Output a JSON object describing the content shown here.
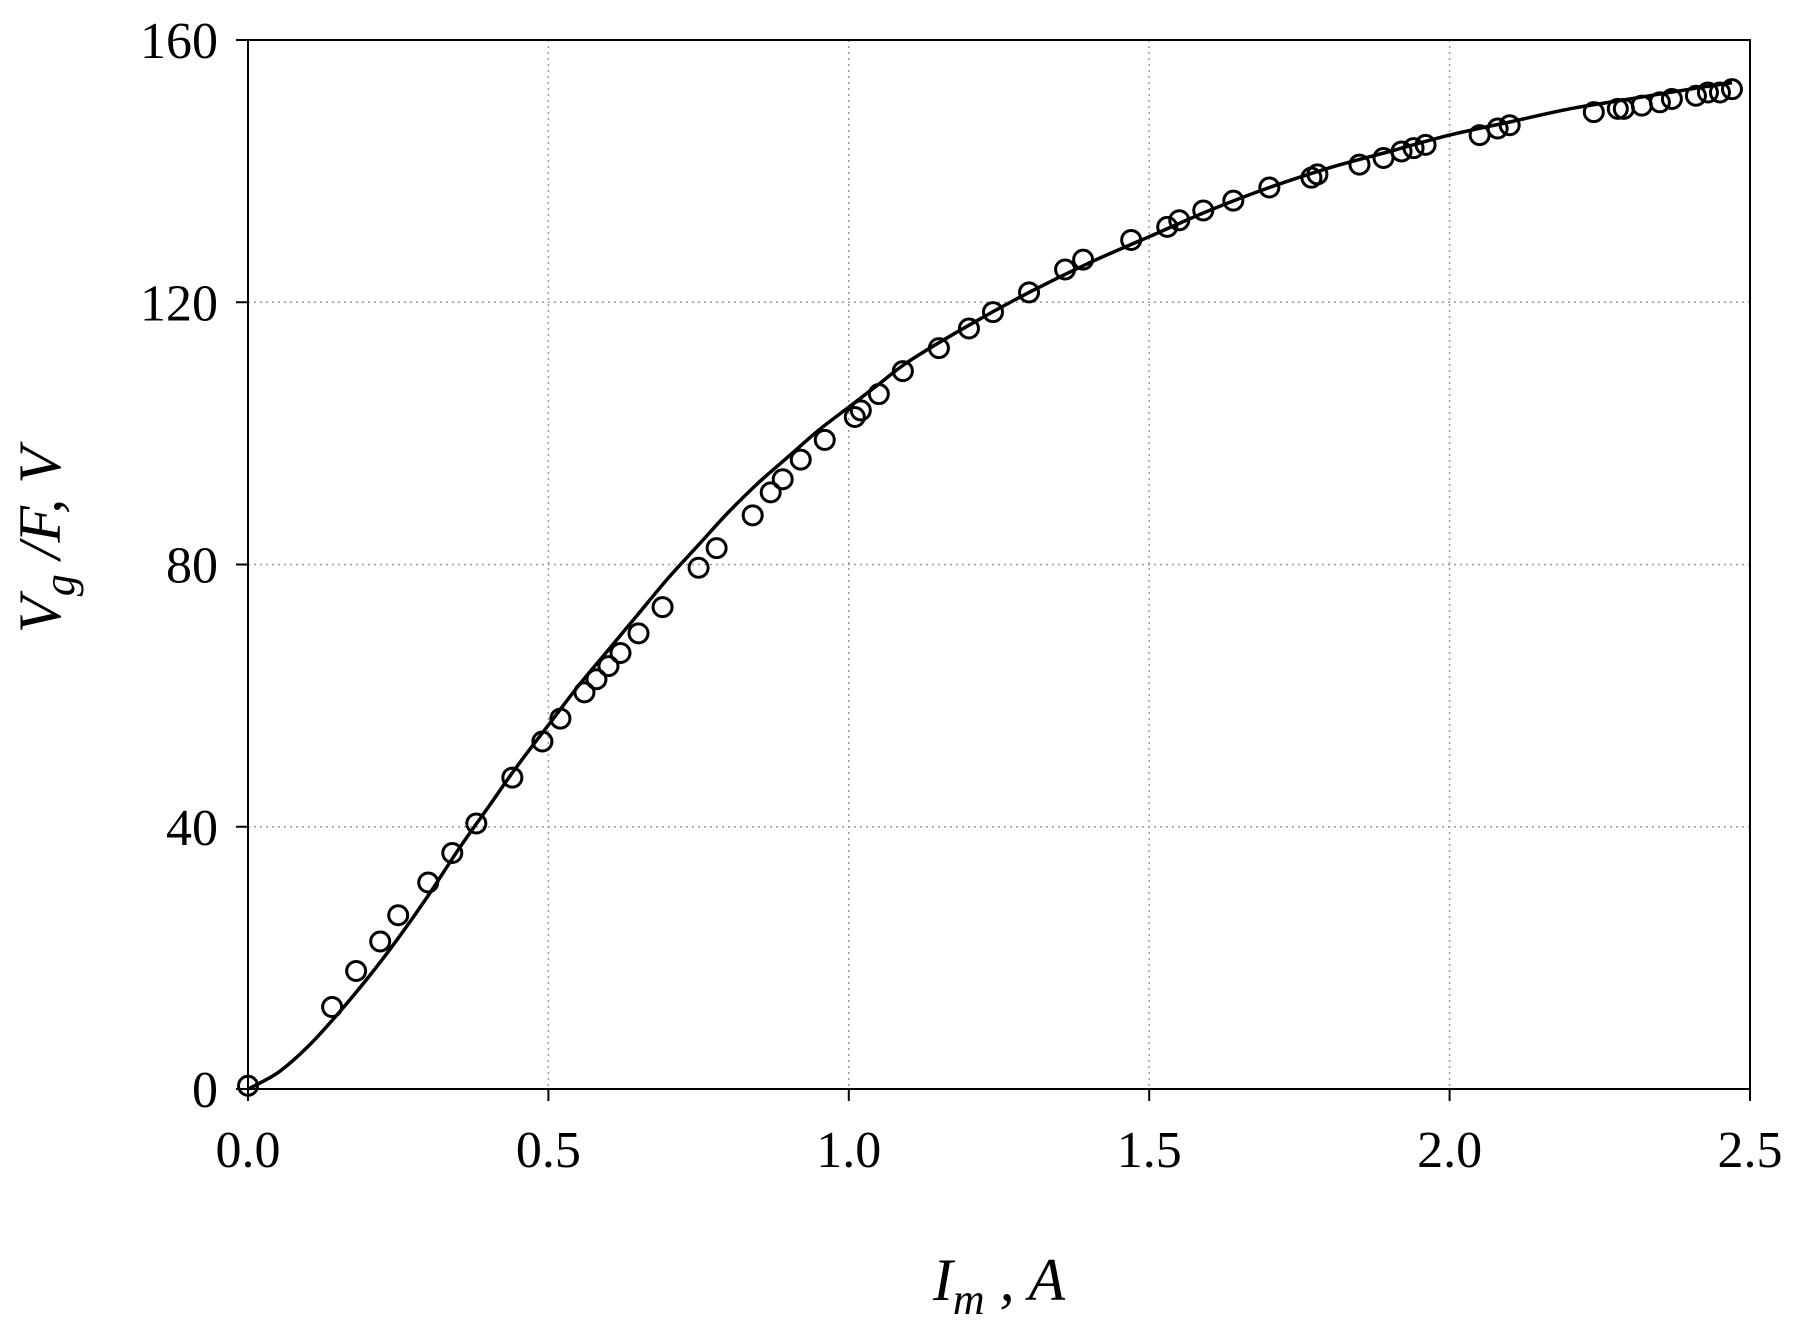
{
  "chart_data": {
    "type": "scatter",
    "title": "",
    "xlim": [
      0,
      2.5
    ],
    "ylim": [
      0,
      160
    ],
    "x_ticks": [
      "0.0",
      "0.5",
      "1.0",
      "1.5",
      "2.0",
      "2.5"
    ],
    "y_ticks": [
      "0",
      "40",
      "80",
      "120",
      "160"
    ],
    "xlabel": {
      "main": "I",
      "sub": "m",
      "rest": " , A"
    },
    "ylabel": {
      "main": "V",
      "sub": "g",
      "rest": " /F, V"
    },
    "grid": true,
    "legend": "none",
    "series": [
      {
        "kind": "markers",
        "x": [
          0.0,
          0.14,
          0.18,
          0.22,
          0.25,
          0.3,
          0.34,
          0.38,
          0.44,
          0.49,
          0.52,
          0.56,
          0.58,
          0.6,
          0.62,
          0.65,
          0.69,
          0.75,
          0.78,
          0.84,
          0.87,
          0.89,
          0.92,
          0.96,
          1.01,
          1.02,
          1.05,
          1.09,
          1.15,
          1.2,
          1.24,
          1.3,
          1.36,
          1.39,
          1.47,
          1.53,
          1.55,
          1.59,
          1.64,
          1.7,
          1.77,
          1.78,
          1.85,
          1.89,
          1.92,
          1.94,
          1.96,
          2.05,
          2.08,
          2.1,
          2.24,
          2.28,
          2.29,
          2.32,
          2.35,
          2.37,
          2.41,
          2.43,
          2.45,
          2.47
        ],
        "y": [
          0.5,
          12.5,
          18,
          22.5,
          26.5,
          31.5,
          36,
          40.5,
          47.5,
          53,
          56.5,
          60.5,
          62.5,
          64.5,
          66.5,
          69.5,
          73.5,
          79.5,
          82.5,
          87.5,
          91,
          93,
          96,
          99,
          102.5,
          103.5,
          106,
          109.5,
          113,
          116,
          118.5,
          121.5,
          125,
          126.5,
          129.5,
          131.5,
          132.5,
          134,
          135.5,
          137.5,
          139,
          139.5,
          141,
          142,
          143,
          143.5,
          144,
          145.5,
          146.5,
          147,
          149,
          149.5,
          149.5,
          150,
          150.5,
          151,
          151.5,
          152,
          152,
          152.5
        ]
      },
      {
        "kind": "line",
        "x": [
          0.0,
          0.05,
          0.1,
          0.15,
          0.2,
          0.25,
          0.3,
          0.35,
          0.4,
          0.45,
          0.5,
          0.55,
          0.6,
          0.65,
          0.7,
          0.75,
          0.8,
          0.85,
          0.9,
          0.95,
          1.0,
          1.05,
          1.1,
          1.2,
          1.3,
          1.4,
          1.5,
          1.6,
          1.7,
          1.8,
          1.9,
          2.0,
          2.1,
          2.2,
          2.3,
          2.4,
          2.47
        ],
        "y": [
          0,
          2.5,
          6.5,
          11.5,
          17,
          23,
          29.5,
          36.5,
          43,
          49.5,
          55.5,
          61.5,
          67,
          72.5,
          78,
          83,
          88,
          92.5,
          96.5,
          100.5,
          104,
          107.5,
          111,
          116.5,
          121.5,
          126,
          130,
          134,
          137.5,
          140.5,
          143,
          145.5,
          147.5,
          149.5,
          151,
          152.5,
          153.5
        ]
      }
    ]
  }
}
